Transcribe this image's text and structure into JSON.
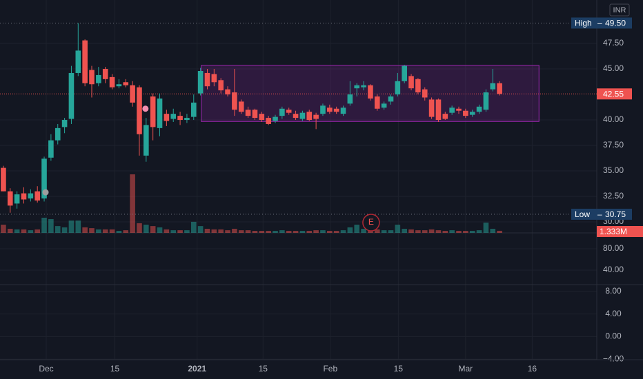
{
  "chart_data": [
    {
      "type": "candlestick",
      "currency": "INR",
      "up_color": "#26a69a",
      "down_color": "#ef5350",
      "box_color": "#9c27b0",
      "xlim": [
        -0.5,
        87.3
      ],
      "ylim": [
        28.92,
        51.76
      ],
      "xticks": [
        {
          "value": 6.3,
          "label": "Dec"
        },
        {
          "value": 16.4,
          "label": "15"
        },
        {
          "value": 28.5,
          "label": "2021"
        },
        {
          "value": 38.2,
          "label": "15"
        },
        {
          "value": 48.1,
          "label": "Feb"
        },
        {
          "value": 58.1,
          "label": "15"
        },
        {
          "value": 68.0,
          "label": "Mar"
        },
        {
          "value": 77.8,
          "label": "16"
        }
      ],
      "yticks": [
        {
          "value": 30,
          "label": "30.00"
        },
        {
          "value": 32.5,
          "label": "32.50"
        },
        {
          "value": 35,
          "label": "35.00"
        },
        {
          "value": 37.5,
          "label": "37.50"
        },
        {
          "value": 40,
          "label": "40.00"
        },
        {
          "value": 45,
          "label": "45.00"
        },
        {
          "value": 47.5,
          "label": "47.50"
        }
      ],
      "open": [
        35.3,
        33.0,
        31.8,
        32.8,
        32.3,
        33.0,
        32.3,
        36.3,
        38.0,
        39.3,
        40.1,
        44.6,
        47.8,
        44.9,
        43.6,
        45.0,
        44.2,
        43.3,
        43.7,
        43.4,
        43.2,
        36.5,
        42.3,
        39.2,
        40.6,
        40.1,
        40.4,
        40.0,
        40.3,
        42.6,
        44.6,
        44.5,
        43.9,
        43.0,
        42.7,
        41.8,
        41.0,
        41.0,
        40.6,
        40.2,
        39.9,
        40.4,
        41.0,
        40.6,
        40.1,
        40.8,
        40.5,
        40.6,
        41.2,
        41.1,
        40.6,
        41.6,
        43.1,
        43.2,
        43.4,
        42.3,
        41.2,
        41.8,
        42.5,
        43.8,
        44.3,
        44.0,
        43.0,
        42.0,
        42.0,
        40.6,
        40.7,
        41.1,
        40.9,
        40.5,
        40.8,
        41.0,
        43.0,
        43.6
      ],
      "high": [
        35.5,
        33.3,
        33.0,
        33.4,
        33.2,
        33.5,
        36.4,
        38.6,
        39.6,
        40.2,
        45.3,
        49.5,
        47.9,
        45.3,
        45.2,
        45.2,
        44.5,
        44.0,
        44.0,
        43.8,
        43.4,
        40.2,
        42.6,
        42.6,
        41.0,
        41.1,
        40.8,
        40.6,
        42.5,
        45.1,
        45.0,
        45.0,
        44.1,
        43.3,
        45.0,
        42.0,
        41.3,
        41.1,
        40.8,
        40.4,
        40.5,
        41.3,
        41.2,
        40.9,
        40.9,
        41.0,
        40.7,
        41.6,
        41.5,
        41.3,
        41.4,
        43.8,
        43.6,
        43.8,
        43.5,
        42.5,
        41.8,
        42.5,
        44.6,
        45.4,
        44.5,
        44.1,
        43.2,
        42.2,
        42.1,
        40.8,
        41.4,
        41.3,
        41.1,
        41.0,
        41.5,
        43.0,
        45.0,
        43.8
      ],
      "low": [
        33.0,
        30.9,
        31.3,
        31.8,
        32.0,
        31.9,
        32.0,
        36.0,
        37.6,
        38.7,
        39.6,
        44.3,
        43.3,
        42.2,
        43.3,
        43.6,
        43.0,
        43.1,
        43.2,
        41.3,
        36.5,
        35.9,
        38.0,
        38.4,
        39.4,
        39.8,
        39.5,
        39.7,
        40.0,
        42.4,
        43.0,
        43.3,
        42.6,
        42.3,
        40.4,
        40.6,
        40.2,
        40.0,
        39.8,
        39.5,
        39.7,
        40.1,
        40.5,
        40.0,
        39.9,
        39.9,
        39.1,
        40.4,
        40.6,
        40.6,
        40.4,
        41.4,
        42.3,
        42.9,
        41.9,
        40.9,
        41.0,
        41.5,
        42.3,
        43.6,
        42.9,
        42.5,
        41.9,
        40.1,
        39.8,
        40.0,
        40.5,
        40.6,
        40.2,
        40.3,
        40.6,
        40.8,
        42.8,
        42.4
      ],
      "close": [
        33.0,
        31.6,
        32.7,
        32.2,
        32.8,
        32.1,
        36.2,
        38.0,
        39.2,
        40.0,
        44.6,
        46.8,
        43.6,
        43.5,
        44.4,
        44.0,
        43.2,
        43.5,
        43.4,
        41.7,
        38.6,
        39.5,
        39.3,
        42.1,
        39.9,
        40.6,
        40.0,
        40.2,
        41.7,
        44.8,
        43.3,
        43.7,
        42.9,
        42.5,
        41.0,
        40.8,
        40.4,
        40.2,
        40.0,
        39.6,
        40.3,
        41.1,
        40.7,
        40.2,
        40.7,
        40.0,
        40.1,
        41.4,
        40.8,
        40.8,
        41.2,
        42.5,
        43.4,
        43.4,
        42.1,
        41.1,
        41.6,
        42.3,
        43.8,
        45.3,
        43.1,
        42.7,
        42.2,
        40.3,
        40.0,
        40.1,
        41.2,
        40.9,
        40.4,
        40.8,
        41.3,
        42.7,
        43.6,
        42.55
      ],
      "volume": [
        5.2,
        2.6,
        2.2,
        2.2,
        1.7,
        2.2,
        9.6,
        8.7,
        4.3,
        3.5,
        7.8,
        7.8,
        3.5,
        3.0,
        2.2,
        2.2,
        2.2,
        1.3,
        1.7,
        37,
        6.1,
        5.2,
        4.3,
        3.5,
        2.2,
        1.7,
        1.7,
        1.7,
        7.0,
        4.3,
        2.6,
        2.2,
        2.2,
        1.7,
        2.6,
        1.7,
        1.7,
        1.3,
        1.3,
        1.3,
        1.3,
        1.7,
        1.3,
        1.3,
        1.3,
        1.3,
        1.7,
        1.7,
        1.3,
        1.3,
        1.7,
        3.5,
        5.2,
        2.6,
        3.5,
        2.2,
        1.7,
        1.7,
        5.2,
        2.6,
        2.2,
        1.7,
        1.7,
        2.2,
        1.7,
        1.3,
        1.7,
        1.3,
        1.3,
        1.3,
        1.7,
        6.5,
        2.6,
        1.333
      ],
      "volume_ylim": [
        0,
        37
      ],
      "volume_last_label": "1.333M",
      "high_line": {
        "label": "High",
        "value": 49.5,
        "value_label": "49.50"
      },
      "low_line": {
        "label": "Low",
        "value": 30.75,
        "value_label": "30.75"
      },
      "last_price": {
        "value": 42.55,
        "label": "42.55"
      },
      "box": {
        "x": [
          29.1,
          78.8
        ],
        "top": 45.35,
        "bottom": 39.85
      },
      "events": [
        {
          "x": 54.1,
          "label": "E"
        }
      ],
      "markers": [
        {
          "x": 6.2,
          "y": 32.9,
          "color": "#9e9e9e"
        },
        {
          "x": 20.9,
          "y": 41.1,
          "color": "#f48fb1"
        }
      ]
    },
    {
      "type": "indicator",
      "ylim": [
        12.9,
        109.7
      ],
      "yticks": [
        {
          "value": 80,
          "label": "80.00"
        },
        {
          "value": 40,
          "label": "40.00"
        }
      ]
    },
    {
      "type": "indicator",
      "ylim": [
        -4.1,
        9.2
      ],
      "yticks": [
        {
          "value": 8,
          "label": "8.00"
        },
        {
          "value": 4,
          "label": "4.00"
        },
        {
          "value": 0,
          "label": "0.00"
        },
        {
          "value": -4,
          "label": "−4.00"
        }
      ]
    }
  ]
}
